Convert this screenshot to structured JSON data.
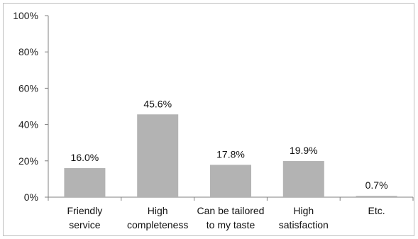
{
  "chart_data": {
    "type": "bar",
    "categories": [
      [
        "Friendly",
        "service"
      ],
      [
        "High",
        "completeness"
      ],
      [
        "Can be tailored",
        "to my taste"
      ],
      [
        "High",
        "satisfaction"
      ],
      [
        "Etc."
      ]
    ],
    "values": [
      16.0,
      45.6,
      17.8,
      19.9,
      0.7
    ],
    "data_labels": [
      "16.0%",
      "45.6%",
      "17.8%",
      "19.9%",
      "0.7%"
    ],
    "yticks": [
      "0%",
      "20%",
      "40%",
      "60%",
      "80%",
      "100%"
    ],
    "ylim": [
      0,
      100
    ],
    "title": "",
    "xlabel": "",
    "ylabel": "",
    "grid": false,
    "bar_color": "#b3b3b3",
    "axis_color": "#808080"
  }
}
